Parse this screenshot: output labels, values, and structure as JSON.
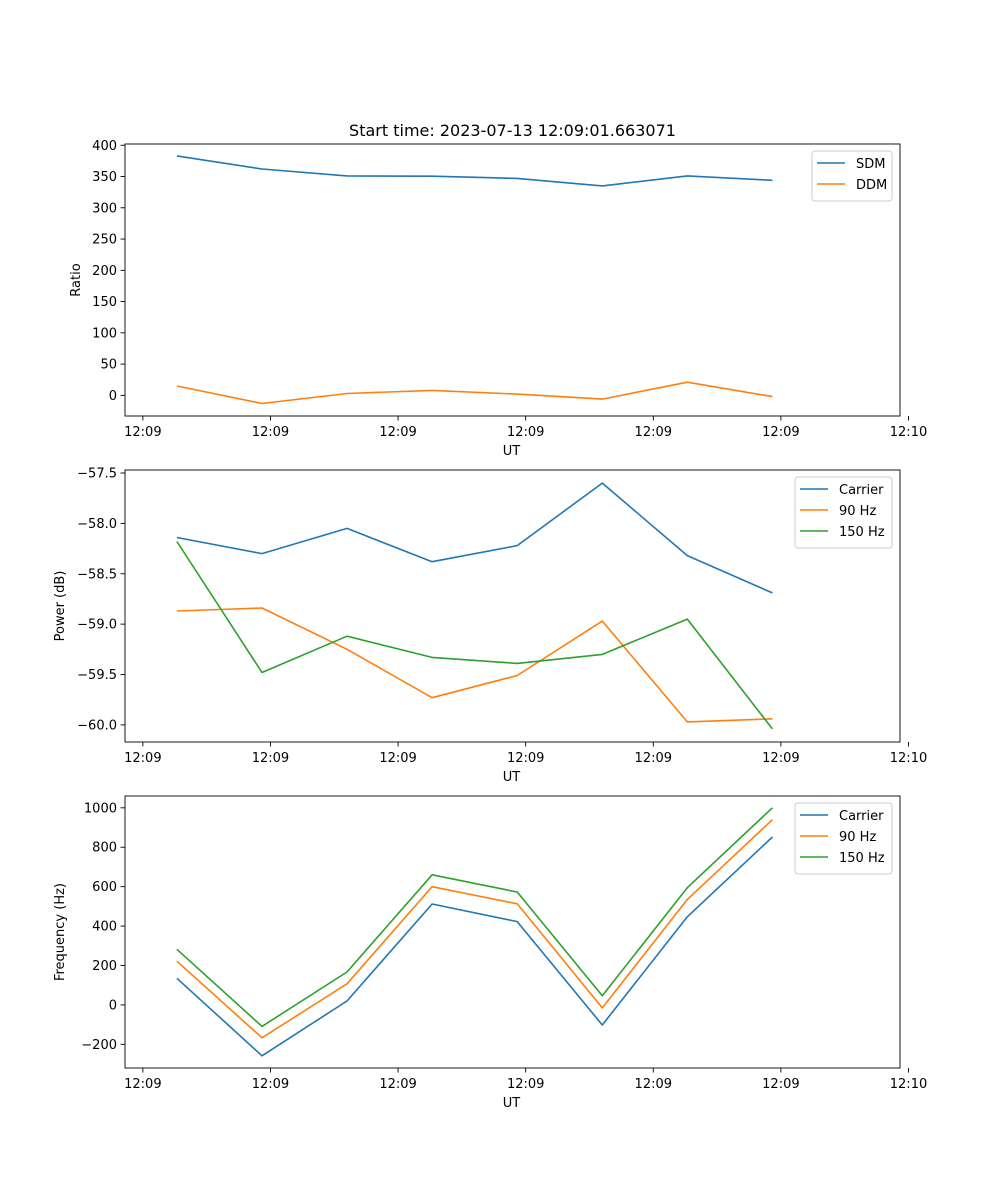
{
  "figure": {
    "title": "Start time: 2023-07-13 12:09:01.663071",
    "colors": {
      "blue": "#1f77b4",
      "orange": "#ff7f0e",
      "green": "#2ca02c"
    }
  },
  "chart_data": [
    {
      "type": "line",
      "title": "Start time: 2023-07-13 12:09:01.663071",
      "xlabel": "UT",
      "ylabel": "Ratio",
      "xlim": [
        -0.61,
        8.5
      ],
      "ylim": [
        -33,
        402
      ],
      "x_ticks": [
        {
          "v": -0.4,
          "label": "12:09"
        },
        {
          "v": 1.1,
          "label": "12:09"
        },
        {
          "v": 2.6,
          "label": "12:09"
        },
        {
          "v": 4.1,
          "label": "12:09"
        },
        {
          "v": 5.6,
          "label": "12:09"
        },
        {
          "v": 7.1,
          "label": "12:09"
        },
        {
          "v": 8.6,
          "label": "12:10"
        }
      ],
      "y_ticks": [
        {
          "v": 400,
          "label": "400"
        },
        {
          "v": 350,
          "label": "350"
        },
        {
          "v": 300,
          "label": "300"
        },
        {
          "v": 250,
          "label": "250"
        },
        {
          "v": 200,
          "label": "200"
        },
        {
          "v": 150,
          "label": "150"
        },
        {
          "v": 100,
          "label": "100"
        },
        {
          "v": 50,
          "label": "50"
        },
        {
          "v": 0,
          "label": "0"
        }
      ],
      "x": [
        0,
        1,
        2,
        3,
        4,
        5,
        6,
        7
      ],
      "series": [
        {
          "name": "SDM",
          "color": "#1f77b4",
          "values": [
            383,
            362,
            351,
            350.5,
            347,
            335,
            351,
            344
          ]
        },
        {
          "name": "DDM",
          "color": "#ff7f0e",
          "values": [
            15,
            -13,
            3,
            8,
            2,
            -6,
            21,
            -2
          ]
        }
      ],
      "legend": "top-right"
    },
    {
      "type": "line",
      "title": "",
      "xlabel": "UT",
      "ylabel": "Power (dB)",
      "xlim": [
        -0.61,
        8.5
      ],
      "ylim": [
        -60.17,
        -57.47
      ],
      "x_ticks": [
        {
          "v": -0.4,
          "label": "12:09"
        },
        {
          "v": 1.1,
          "label": "12:09"
        },
        {
          "v": 2.6,
          "label": "12:09"
        },
        {
          "v": 4.1,
          "label": "12:09"
        },
        {
          "v": 5.6,
          "label": "12:09"
        },
        {
          "v": 7.1,
          "label": "12:09"
        },
        {
          "v": 8.6,
          "label": "12:10"
        }
      ],
      "y_ticks": [
        {
          "v": -57.5,
          "label": "−57.5"
        },
        {
          "v": -58.0,
          "label": "−58.0"
        },
        {
          "v": -58.5,
          "label": "−58.5"
        },
        {
          "v": -59.0,
          "label": "−59.0"
        },
        {
          "v": -59.5,
          "label": "−59.5"
        },
        {
          "v": -60.0,
          "label": "−60.0"
        }
      ],
      "x": [
        0,
        1,
        2,
        3,
        4,
        5,
        6,
        7
      ],
      "series": [
        {
          "name": "Carrier",
          "color": "#1f77b4",
          "values": [
            -58.14,
            -58.3,
            -58.05,
            -58.38,
            -58.22,
            -57.6,
            -58.32,
            -58.69
          ]
        },
        {
          "name": "90 Hz",
          "color": "#ff7f0e",
          "values": [
            -58.87,
            -58.84,
            -59.25,
            -59.73,
            -59.51,
            -58.97,
            -59.97,
            -59.94
          ]
        },
        {
          "name": "150 Hz",
          "color": "#2ca02c",
          "values": [
            -58.18,
            -59.48,
            -59.12,
            -59.33,
            -59.39,
            -59.3,
            -58.95,
            -60.04
          ]
        }
      ],
      "legend": "top-right"
    },
    {
      "type": "line",
      "title": "",
      "xlabel": "UT",
      "ylabel": "Frequency (Hz)",
      "xlim": [
        -0.61,
        8.5
      ],
      "ylim": [
        -320,
        1060
      ],
      "x_ticks": [
        {
          "v": -0.4,
          "label": "12:09"
        },
        {
          "v": 1.1,
          "label": "12:09"
        },
        {
          "v": 2.6,
          "label": "12:09"
        },
        {
          "v": 4.1,
          "label": "12:09"
        },
        {
          "v": 5.6,
          "label": "12:09"
        },
        {
          "v": 7.1,
          "label": "12:09"
        },
        {
          "v": 8.6,
          "label": "12:10"
        }
      ],
      "y_ticks": [
        {
          "v": 1000,
          "label": "1000"
        },
        {
          "v": 800,
          "label": "800"
        },
        {
          "v": 600,
          "label": "600"
        },
        {
          "v": 400,
          "label": "400"
        },
        {
          "v": 200,
          "label": "200"
        },
        {
          "v": 0,
          "label": "0"
        },
        {
          "v": -200,
          "label": "−200"
        }
      ],
      "x": [
        0,
        1,
        2,
        3,
        4,
        5,
        6,
        7
      ],
      "series": [
        {
          "name": "Carrier",
          "color": "#1f77b4",
          "values": [
            135,
            -258,
            20,
            512,
            423,
            -102,
            447,
            852
          ]
        },
        {
          "name": "90 Hz",
          "color": "#ff7f0e",
          "values": [
            222,
            -167,
            107,
            600,
            513,
            -15,
            535,
            940
          ]
        },
        {
          "name": "150 Hz",
          "color": "#2ca02c",
          "values": [
            282,
            -109,
            167,
            660,
            573,
            47,
            595,
            1000
          ]
        }
      ],
      "legend": "top-right"
    }
  ]
}
